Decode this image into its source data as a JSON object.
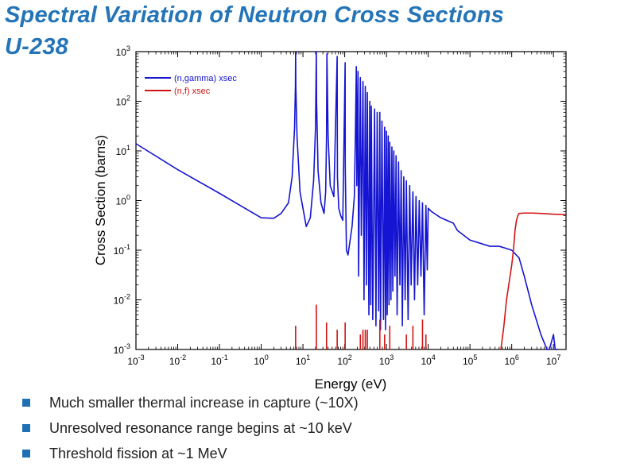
{
  "slide": {
    "title_line1": "Spectral Variation of Neutron Cross Sections",
    "title_line2": "U-238",
    "bullets": [
      "Much smaller thermal increase in capture (~10X)",
      "Unresolved resonance range begins at ~10 keV",
      "Threshold fission at ~1 MeV"
    ]
  },
  "chart_data": {
    "type": "line",
    "xscale": "log",
    "yscale": "log",
    "xlabel": "Energy (eV)",
    "ylabel": "Cross Section (barns)",
    "xlim": [
      0.001,
      20000000
    ],
    "ylim": [
      0.001,
      1000
    ],
    "x_ticks": [
      {
        "base": "10",
        "exp": "-3"
      },
      {
        "base": "10",
        "exp": "-2"
      },
      {
        "base": "10",
        "exp": "-1"
      },
      {
        "base": "10",
        "exp": "0"
      },
      {
        "base": "10",
        "exp": "1"
      },
      {
        "base": "10",
        "exp": "2"
      },
      {
        "base": "10",
        "exp": "3"
      },
      {
        "base": "10",
        "exp": "4"
      },
      {
        "base": "10",
        "exp": "5"
      },
      {
        "base": "10",
        "exp": "6"
      },
      {
        "base": "10",
        "exp": "7"
      }
    ],
    "y_ticks": [
      {
        "base": "10",
        "exp": "-3"
      },
      {
        "base": "10",
        "exp": "-2"
      },
      {
        "base": "10",
        "exp": "-1"
      },
      {
        "base": "10",
        "exp": "0"
      },
      {
        "base": "10",
        "exp": "1"
      },
      {
        "base": "10",
        "exp": "2"
      },
      {
        "base": "10",
        "exp": "3"
      }
    ],
    "legend_position": "top-left",
    "series": [
      {
        "name": "(n,gamma) xsec",
        "color": "#1414d2",
        "x": [
          0.001,
          0.01,
          0.1,
          1,
          2,
          3,
          4.5,
          5.5,
          6.3,
          6.6,
          6.67,
          6.75,
          7.2,
          8.5,
          10,
          12,
          15,
          18,
          20,
          20.9,
          21.2,
          23,
          27,
          32,
          35,
          36.7,
          37.5,
          40,
          45,
          55,
          66,
          66.5,
          67,
          72,
          80,
          90,
          102.5,
          103,
          110,
          120,
          150,
          170,
          180,
          189.7,
          195,
          208.5,
          215,
          237,
          250,
          273.7,
          290,
          311.3,
          330,
          347.8,
          380,
          398,
          420,
          433.9,
          470,
          518.5,
          560,
          600,
          650,
          694,
          720,
          780,
          850,
          905,
          950,
          1000,
          1040,
          1100,
          1150,
          1200,
          1280,
          1350,
          1420,
          1500,
          1600,
          1700,
          1800,
          1950,
          2100,
          2250,
          2400,
          2600,
          2800,
          3000,
          3300,
          3600,
          3900,
          4300,
          4700,
          5100,
          5600,
          6100,
          6700,
          7300,
          8000,
          8800,
          9500,
          10000,
          12000,
          20000,
          40000,
          50000,
          100000,
          300000,
          500000,
          700000,
          1000000,
          1500000,
          2000000,
          3000000,
          5000000,
          7000000,
          8000000,
          10000000,
          11000000,
          12000000,
          13000000
        ],
        "values": [
          14,
          4.2,
          1.4,
          0.45,
          0.44,
          0.55,
          0.9,
          3,
          30,
          200,
          1000,
          200,
          20,
          1.5,
          0.7,
          0.3,
          0.45,
          2.5,
          30,
          1000,
          100,
          4,
          0.9,
          0.55,
          1.5,
          20,
          900,
          20,
          2,
          1.2,
          800,
          30,
          3,
          0.7,
          0.5,
          0.4,
          600,
          5,
          0.1,
          0.08,
          0.3,
          1.2,
          20,
          500,
          2,
          400,
          0.03,
          300,
          0.2,
          250,
          0.01,
          200,
          0.02,
          150,
          0.005,
          100,
          0.008,
          80,
          0.004,
          70,
          0.003,
          60,
          0.006,
          60,
          0.0025,
          40,
          0.004,
          30,
          0.0025,
          25,
          0.005,
          20,
          0.008,
          15,
          0.01,
          12,
          0.015,
          10,
          0.03,
          8,
          0.005,
          6,
          0.02,
          4,
          0.003,
          3,
          0.01,
          2.5,
          0.004,
          2,
          0.02,
          1.5,
          0.01,
          1.2,
          0.02,
          1,
          0.03,
          0.9,
          0.005,
          0.8,
          0.04,
          0.7,
          0.6,
          0.45,
          0.35,
          0.25,
          0.16,
          0.12,
          0.12,
          0.11,
          0.1,
          0.07,
          0.03,
          0.008,
          0.002,
          0.001,
          0.0009,
          0.002,
          0.001,
          0.0009,
          0.001
        ]
      },
      {
        "name": "(n,f) xsec",
        "color": "#d21414",
        "x": [
          550000,
          650000,
          750000,
          850000,
          1000000,
          1100000,
          1200000,
          1300000,
          1400000,
          1500000,
          2000000,
          3000000,
          5000000,
          10000000,
          20000000
        ],
        "values": [
          0.001,
          0.003,
          0.01,
          0.02,
          0.05,
          0.1,
          0.25,
          0.4,
          0.5,
          0.55,
          0.56,
          0.56,
          0.55,
          0.53,
          0.52
        ],
        "spikes": [
          [
            6.67,
            0.003
          ],
          [
            20.9,
            0.008
          ],
          [
            36.7,
            0.0035
          ],
          [
            66,
            0.0025
          ],
          [
            102.5,
            0.0035
          ],
          [
            237,
            0.002
          ],
          [
            273.7,
            0.0025
          ],
          [
            311.3,
            0.0025
          ],
          [
            347.8,
            0.0025
          ],
          [
            694,
            0.004
          ],
          [
            905,
            0.002
          ],
          [
            1200,
            0.003
          ],
          [
            3000,
            0.002
          ],
          [
            4300,
            0.003
          ],
          [
            7300,
            0.004
          ],
          [
            8800,
            0.002
          ]
        ]
      }
    ]
  }
}
